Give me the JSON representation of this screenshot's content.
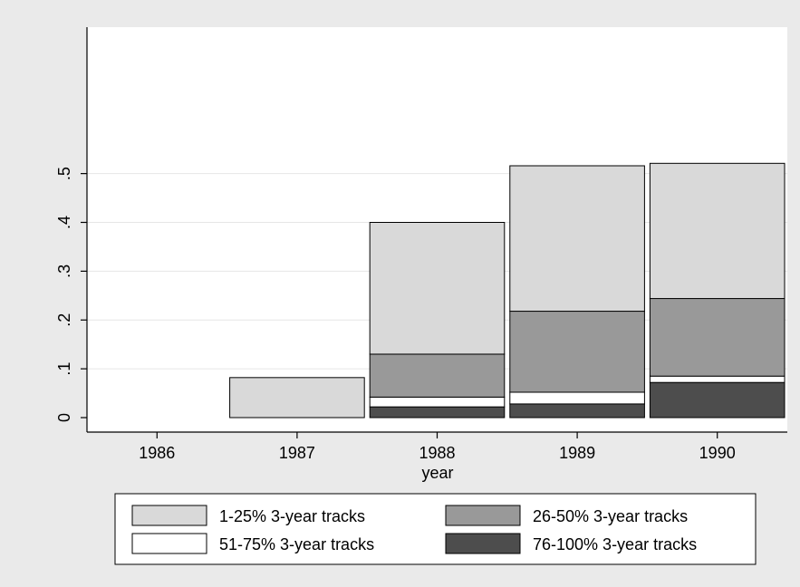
{
  "chart_data": {
    "type": "bar",
    "stacked": true,
    "categories": [
      "1986",
      "1987",
      "1988",
      "1989",
      "1990"
    ],
    "xlabel": "year",
    "ylabel": "",
    "ylim": [
      0,
      0.8
    ],
    "yticks": [
      0,
      0.1,
      0.2,
      0.3,
      0.4,
      0.5
    ],
    "ytick_labels": [
      "0",
      ".1",
      ".2",
      ".3",
      ".4",
      ".5"
    ],
    "grid": true,
    "legend_position": "bottom",
    "series": [
      {
        "name": "76-100% 3-year tracks",
        "color": "#4d4d4d",
        "values": [
          0,
          0,
          0.022,
          0.028,
          0.072
        ]
      },
      {
        "name": "51-75% 3-year tracks",
        "color": "#ffffff",
        "values": [
          0,
          0,
          0.02,
          0.024,
          0.013
        ]
      },
      {
        "name": "26-50% 3-year tracks",
        "color": "#999999",
        "values": [
          0,
          0,
          0.088,
          0.166,
          0.159
        ]
      },
      {
        "name": "1-25% 3-year tracks",
        "color": "#d9d9d9",
        "values": [
          0,
          0.082,
          0.27,
          0.298,
          0.277
        ]
      }
    ],
    "legend_order": [
      3,
      2,
      1,
      0
    ]
  }
}
